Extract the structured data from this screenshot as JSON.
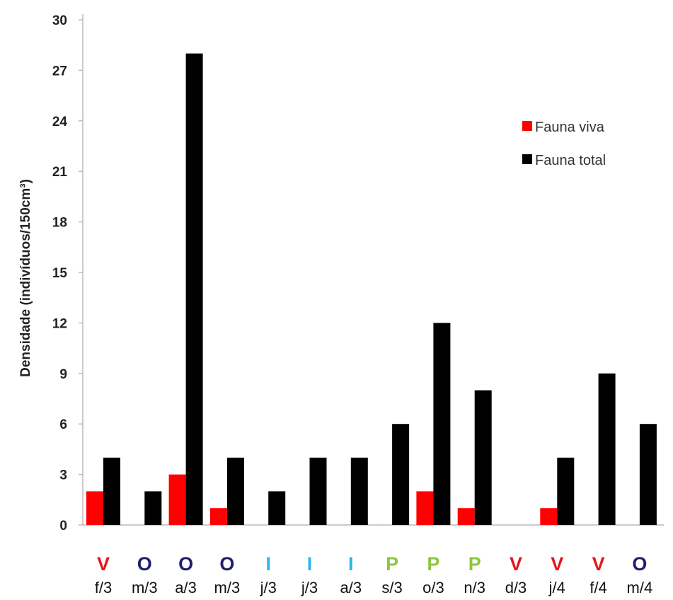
{
  "chart_data": {
    "type": "bar",
    "xlabel": "",
    "ylabel": "Densidade (indivíduos/150cm³)",
    "ylim": [
      0,
      30
    ],
    "yticks": [
      0,
      3,
      6,
      9,
      12,
      15,
      18,
      21,
      24,
      27,
      30
    ],
    "grid": false,
    "legend_position": "right",
    "categories": [
      "f/3",
      "m/3",
      "a/3",
      "m/3",
      "j/3",
      "j/3",
      "a/3",
      "s/3",
      "o/3",
      "n/3",
      "d/3",
      "j/4",
      "f/4",
      "m/4"
    ],
    "seasons": [
      "V",
      "O",
      "O",
      "O",
      "I",
      "I",
      "I",
      "P",
      "P",
      "P",
      "V",
      "V",
      "V",
      "O"
    ],
    "season_colors": {
      "V": "#e8141c",
      "O": "#1f1f6b",
      "I": "#29b6e8",
      "P": "#8cc63f"
    },
    "series": [
      {
        "name": "Fauna viva",
        "color": "#ff0000",
        "values": [
          2,
          0,
          3,
          1,
          0,
          0,
          0,
          0,
          2,
          1,
          0,
          1,
          0,
          0
        ]
      },
      {
        "name": "Fauna total",
        "color": "#000000",
        "values": [
          4,
          2,
          28,
          4,
          2,
          4,
          4,
          6,
          12,
          8,
          0,
          4,
          9,
          6
        ]
      }
    ]
  }
}
